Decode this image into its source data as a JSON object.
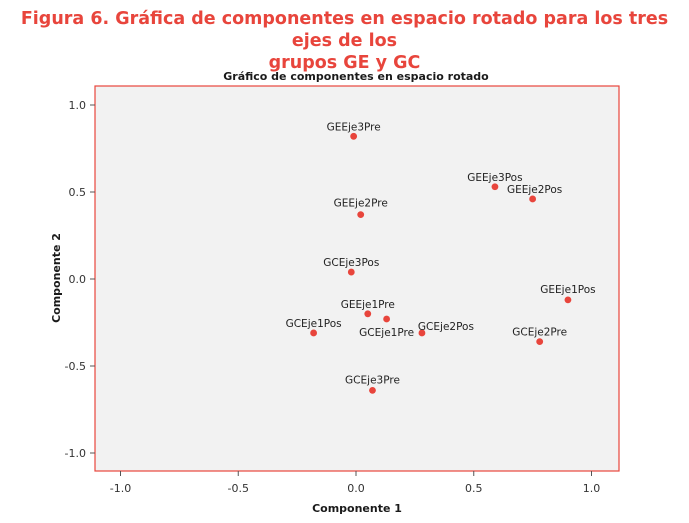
{
  "figure": {
    "title_line1": "Figura 6. Gráfica de componentes en espacio rotado para los tres ejes de los",
    "title_line2": "grupos GE y GC"
  },
  "colors": {
    "accent": "#e8453c",
    "plot_background": "#f2f2f2",
    "frame": "#e8453c",
    "point": "#e8453c"
  },
  "chart_data": {
    "type": "scatter",
    "title": "Gráfico de componentes en espacio rotado",
    "xlabel": "Componente 1",
    "ylabel": "Componente 2",
    "xlim": [
      -1.1,
      1.1
    ],
    "ylim": [
      -1.1,
      1.1
    ],
    "xticks": [
      "-1.0",
      "-0.5",
      "0.0",
      "0.5",
      "1.0"
    ],
    "xtick_values": [
      -1.0,
      -0.5,
      0.0,
      0.5,
      1.0
    ],
    "yticks": [
      "1.0",
      "0.5",
      "0.0",
      "-0.5",
      "-1.0"
    ],
    "ytick_values": [
      1.0,
      0.5,
      0.0,
      -0.5,
      -1.0
    ],
    "grid": false,
    "legend": "none",
    "points": [
      {
        "label": "GEEje3Pre",
        "x": -0.01,
        "y": 0.82
      },
      {
        "label": "GEEje3Pos",
        "x": 0.59,
        "y": 0.53
      },
      {
        "label": "GEEje2Pos",
        "x": 0.75,
        "y": 0.46
      },
      {
        "label": "GEEje2Pre",
        "x": 0.02,
        "y": 0.37
      },
      {
        "label": "GCEje3Pos",
        "x": -0.02,
        "y": 0.04
      },
      {
        "label": "GEEje1Pos",
        "x": 0.9,
        "y": -0.12
      },
      {
        "label": "GEEje1Pre",
        "x": 0.05,
        "y": -0.2
      },
      {
        "label": "GCEje1Pre",
        "x": 0.13,
        "y": -0.23
      },
      {
        "label": "GCEje2Pos",
        "x": 0.28,
        "y": -0.31
      },
      {
        "label": "GCEje1Pos",
        "x": -0.18,
        "y": -0.31
      },
      {
        "label": "GCEje2Pre",
        "x": 0.78,
        "y": -0.36
      },
      {
        "label": "GCEje3Pre",
        "x": 0.07,
        "y": -0.64
      }
    ]
  }
}
